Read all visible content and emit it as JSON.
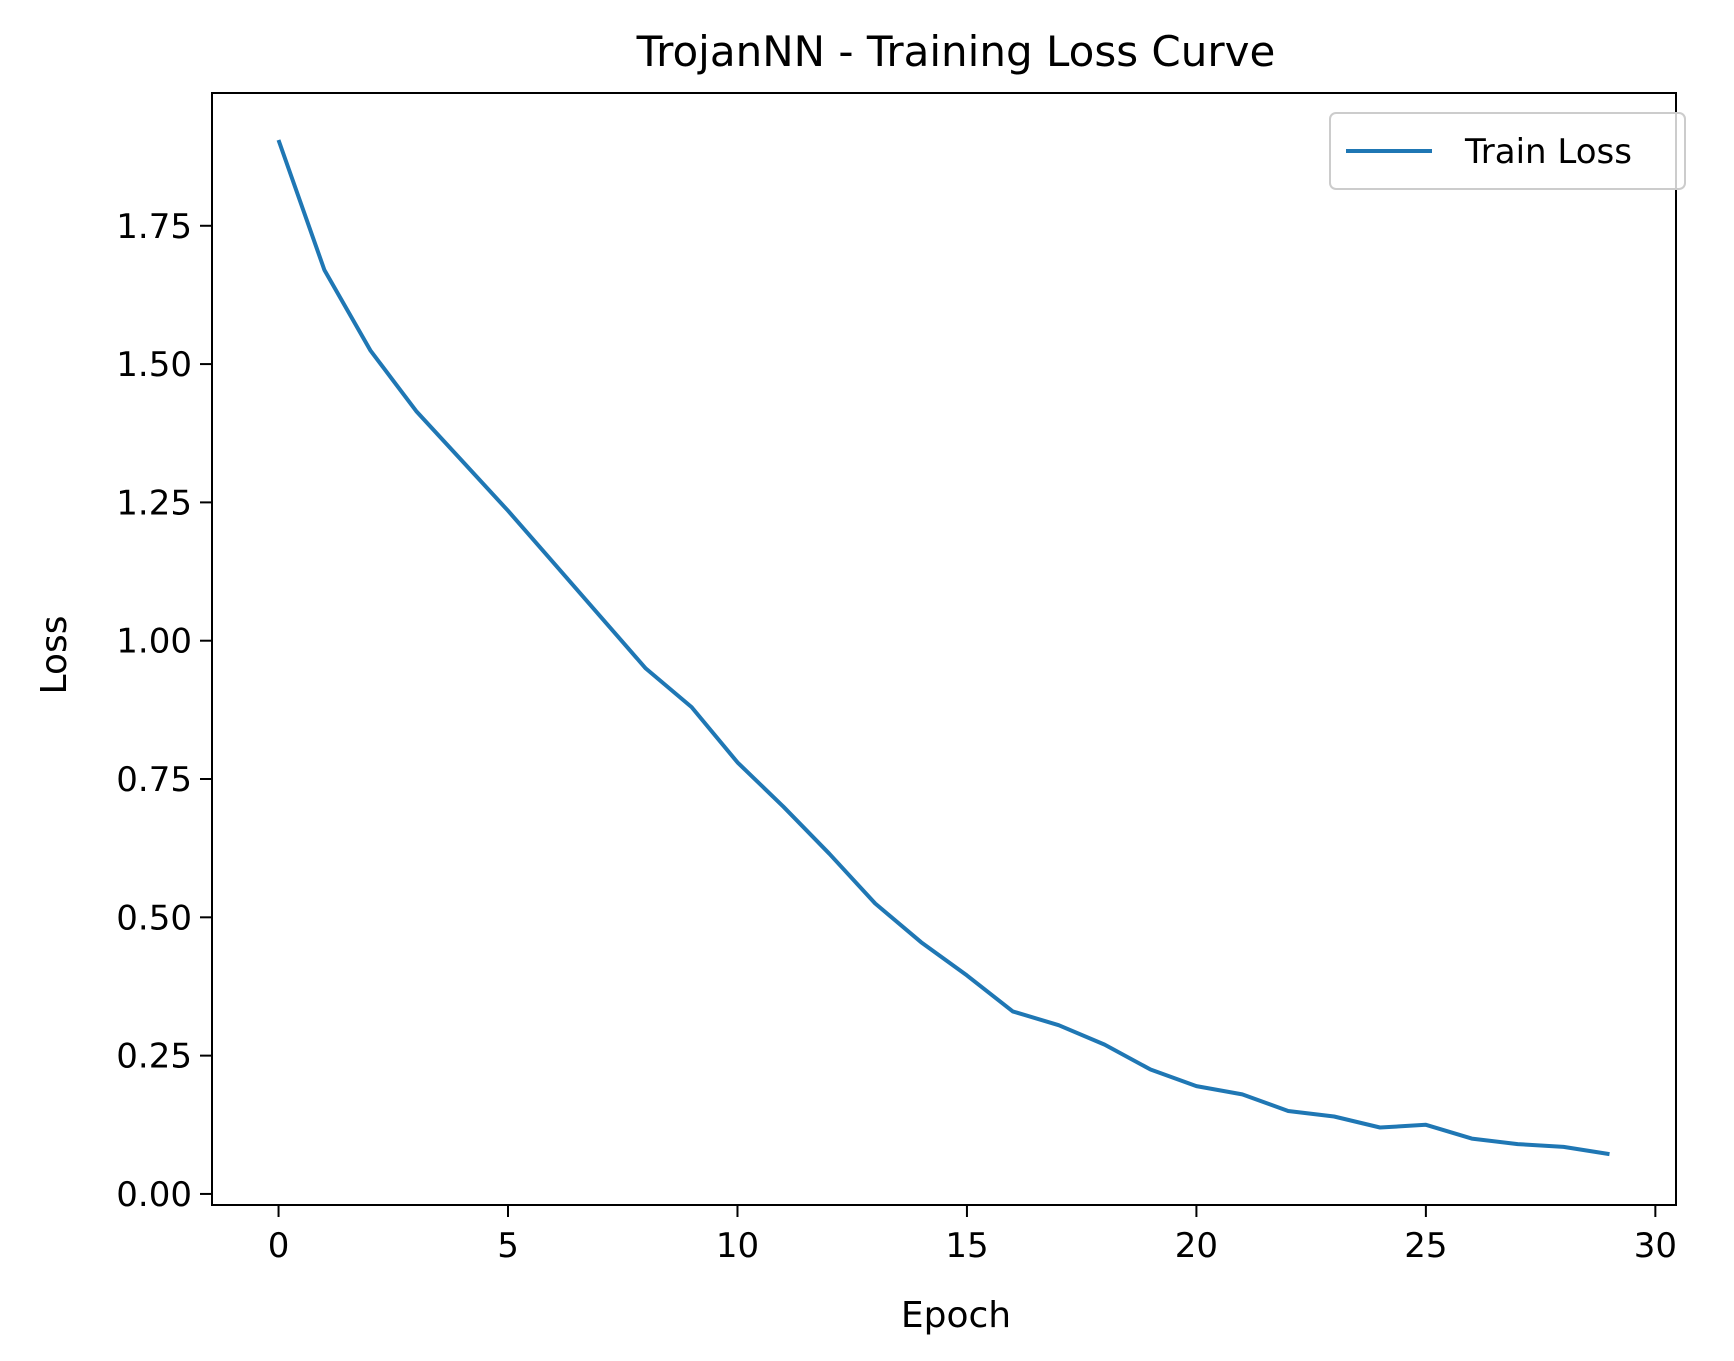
{
  "chart_data": {
    "type": "line",
    "title": "TrojanNN - Training Loss Curve",
    "xlabel": "Epoch",
    "ylabel": "Loss",
    "xlim": [
      -1.45,
      30.45
    ],
    "ylim": [
      -0.02,
      1.99
    ],
    "xticks": [
      0,
      5,
      10,
      15,
      20,
      25,
      30
    ],
    "xtick_labels": [
      "0",
      "5",
      "10",
      "15",
      "20",
      "25",
      "30"
    ],
    "yticks": [
      0.0,
      0.25,
      0.5,
      0.75,
      1.0,
      1.25,
      1.5,
      1.75
    ],
    "ytick_labels": [
      "0.00",
      "0.25",
      "0.50",
      "0.75",
      "1.00",
      "1.25",
      "1.50",
      "1.75"
    ],
    "grid": false,
    "legend": {
      "position": "top-right"
    },
    "series": [
      {
        "name": "Train Loss",
        "color": "#1f77b4",
        "x": [
          0,
          1,
          2,
          3,
          4,
          5,
          6,
          7,
          8,
          9,
          10,
          11,
          12,
          13,
          14,
          15,
          16,
          17,
          18,
          19,
          20,
          21,
          22,
          23,
          24,
          25,
          26,
          27,
          28,
          29
        ],
        "y": [
          1.905,
          1.67,
          1.525,
          1.415,
          1.325,
          1.235,
          1.14,
          1.045,
          0.95,
          0.88,
          0.78,
          0.7,
          0.615,
          0.525,
          0.455,
          0.395,
          0.33,
          0.305,
          0.27,
          0.225,
          0.195,
          0.18,
          0.15,
          0.14,
          0.12,
          0.125,
          0.1,
          0.09,
          0.085,
          0.072
        ]
      }
    ]
  }
}
